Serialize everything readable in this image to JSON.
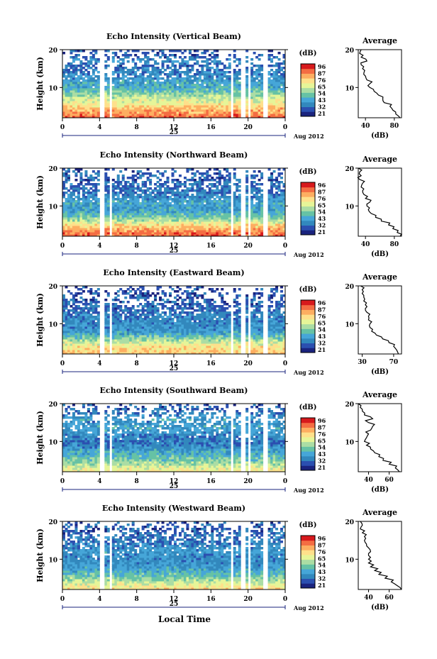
{
  "figure": {
    "xlabel": "Local Time",
    "colorbar_unit": "(dB)",
    "colorbar_ticks": [
      "96",
      "87",
      "76",
      "65",
      "54",
      "43",
      "32",
      "21"
    ],
    "colorbar_colors": [
      "#d7191c",
      "#f46d43",
      "#fdae61",
      "#fee08b",
      "#e6f598",
      "#abdda4",
      "#66c2a5",
      "#3288bd",
      "#2b4fb0",
      "#1a237e"
    ]
  },
  "chart_data": [
    {
      "type": "heatmap",
      "title": "Echo Intensity (Vertical Beam)",
      "ylabel": "Height (km)",
      "yticks": [
        "20",
        "10"
      ],
      "xticks": [
        "0",
        "4",
        "8",
        "12",
        "16",
        "20",
        "0"
      ],
      "date_label": "25",
      "month_label": "Aug 2012",
      "xlim": [
        0,
        24
      ],
      "ylim": [
        2,
        20
      ],
      "colorbar_range_db": [
        21,
        96
      ],
      "gaps_hours": [
        [
          1.0,
          1.2
        ],
        [
          4.1,
          4.5
        ],
        [
          5.2,
          5.4
        ],
        [
          17.5,
          17.7
        ],
        [
          18.2,
          18.5
        ],
        [
          19.3,
          19.6
        ],
        [
          20.0,
          20.2
        ],
        [
          21.7,
          22.0
        ]
      ],
      "profile": {
        "title": "Average",
        "xlabel": "(dB)",
        "xticks": [
          "40",
          "80"
        ],
        "xlim": [
          30,
          90
        ],
        "heights_km": [
          2,
          3,
          4,
          5,
          6,
          7,
          8,
          9,
          10,
          11,
          12,
          13,
          14,
          15,
          16,
          17,
          18,
          19,
          20
        ],
        "db": [
          88,
          82,
          78,
          74,
          66,
          64,
          58,
          52,
          46,
          46,
          42,
          40,
          38,
          36,
          34,
          42,
          34,
          32,
          34
        ]
      }
    },
    {
      "type": "heatmap",
      "title": "Echo Intensity (Northward Beam)",
      "ylabel": "Height (km)",
      "yticks": [
        "20",
        "10"
      ],
      "xticks": [
        "0",
        "4",
        "8",
        "12",
        "16",
        "20",
        "0"
      ],
      "date_label": "25",
      "month_label": "Aug 2012",
      "xlim": [
        0,
        24
      ],
      "ylim": [
        2,
        20
      ],
      "colorbar_range_db": [
        21,
        96
      ],
      "gaps_hours": [
        [
          1.0,
          1.2
        ],
        [
          4.1,
          4.5
        ],
        [
          5.2,
          5.4
        ],
        [
          17.5,
          17.7
        ],
        [
          18.2,
          18.5
        ],
        [
          19.3,
          19.6
        ],
        [
          20.0,
          20.2
        ],
        [
          21.7,
          22.0
        ]
      ],
      "profile": {
        "title": "Average",
        "xlabel": "(dB)",
        "xticks": [
          "40",
          "80"
        ],
        "xlim": [
          30,
          90
        ],
        "heights_km": [
          2,
          3,
          4,
          5,
          6,
          7,
          8,
          9,
          10,
          11,
          12,
          13,
          14,
          15,
          16,
          17,
          18,
          19,
          20
        ],
        "db": [
          88,
          84,
          78,
          72,
          62,
          54,
          48,
          44,
          42,
          46,
          40,
          38,
          36,
          34,
          36,
          32,
          34,
          32,
          30
        ]
      }
    },
    {
      "type": "heatmap",
      "title": "Echo Intensity (Eastward Beam)",
      "ylabel": "Height (km)",
      "yticks": [
        "20",
        "10"
      ],
      "xticks": [
        "0",
        "4",
        "8",
        "12",
        "16",
        "20",
        "0"
      ],
      "date_label": "25",
      "month_label": "Aug 2012",
      "xlim": [
        0,
        24
      ],
      "ylim": [
        2,
        20
      ],
      "colorbar_range_db": [
        21,
        96
      ],
      "gaps_hours": [
        [
          1.0,
          1.2
        ],
        [
          4.1,
          4.5
        ],
        [
          5.2,
          5.4
        ],
        [
          17.5,
          17.7
        ],
        [
          18.2,
          18.5
        ],
        [
          19.3,
          19.6
        ],
        [
          20.0,
          20.2
        ],
        [
          21.7,
          22.0
        ]
      ],
      "profile": {
        "title": "Average",
        "xlabel": "(dB)",
        "xticks": [
          "30",
          "70"
        ],
        "xlim": [
          25,
          80
        ],
        "heights_km": [
          2,
          3,
          4,
          5,
          6,
          7,
          8,
          9,
          10,
          11,
          12,
          13,
          14,
          15,
          16,
          17,
          18,
          19,
          20
        ],
        "db": [
          76,
          74,
          70,
          64,
          56,
          48,
          42,
          40,
          40,
          38,
          38,
          36,
          34,
          34,
          32,
          32,
          30,
          30,
          28
        ]
      }
    },
    {
      "type": "heatmap",
      "title": "Echo Intensity (Southward Beam)",
      "ylabel": "Height (km)",
      "yticks": [
        "20",
        "10"
      ],
      "xticks": [
        "0",
        "4",
        "8",
        "12",
        "16",
        "20",
        "0"
      ],
      "date_label": "25",
      "month_label": "Aug 2012",
      "xlim": [
        0,
        24
      ],
      "ylim": [
        2,
        20
      ],
      "colorbar_range_db": [
        21,
        96
      ],
      "gaps_hours": [
        [
          1.0,
          1.2
        ],
        [
          4.1,
          4.5
        ],
        [
          5.2,
          5.4
        ],
        [
          17.5,
          17.7
        ],
        [
          18.2,
          18.5
        ],
        [
          19.3,
          19.6
        ],
        [
          20.0,
          20.2
        ],
        [
          21.7,
          22.0
        ]
      ],
      "profile": {
        "title": "Average",
        "xlabel": "(dB)",
        "xticks": [
          "40",
          "60"
        ],
        "xlim": [
          30,
          72
        ],
        "heights_km": [
          2,
          3,
          4,
          5,
          6,
          7,
          8,
          9,
          10,
          11,
          12,
          13,
          14,
          15,
          16,
          17,
          18,
          19,
          20
        ],
        "db": [
          70,
          66,
          60,
          54,
          50,
          46,
          42,
          38,
          36,
          38,
          40,
          42,
          44,
          40,
          44,
          36,
          34,
          32,
          30
        ]
      }
    },
    {
      "type": "heatmap",
      "title": "Echo Intensity (Westward Beam)",
      "ylabel": "Height (km)",
      "yticks": [
        "20",
        "10"
      ],
      "xticks": [
        "0",
        "4",
        "8",
        "12",
        "16",
        "20",
        "0"
      ],
      "date_label": "25",
      "month_label": "Aug 2012",
      "xlim": [
        0,
        24
      ],
      "ylim": [
        2,
        20
      ],
      "colorbar_range_db": [
        21,
        96
      ],
      "gaps_hours": [
        [
          1.0,
          1.2
        ],
        [
          4.1,
          4.5
        ],
        [
          5.2,
          5.4
        ],
        [
          17.5,
          17.7
        ],
        [
          18.2,
          18.5
        ],
        [
          19.3,
          19.6
        ],
        [
          20.0,
          20.2
        ],
        [
          21.7,
          22.0
        ]
      ],
      "profile": {
        "title": "Average",
        "xlabel": "(dB)",
        "xticks": [
          "40",
          "60"
        ],
        "xlim": [
          30,
          72
        ],
        "heights_km": [
          2,
          3,
          4,
          5,
          6,
          7,
          8,
          9,
          10,
          11,
          12,
          13,
          14,
          15,
          16,
          17,
          18,
          19,
          20
        ],
        "db": [
          72,
          68,
          62,
          56,
          50,
          46,
          42,
          40,
          40,
          40,
          42,
          40,
          38,
          36,
          36,
          34,
          32,
          34,
          32
        ]
      }
    }
  ]
}
